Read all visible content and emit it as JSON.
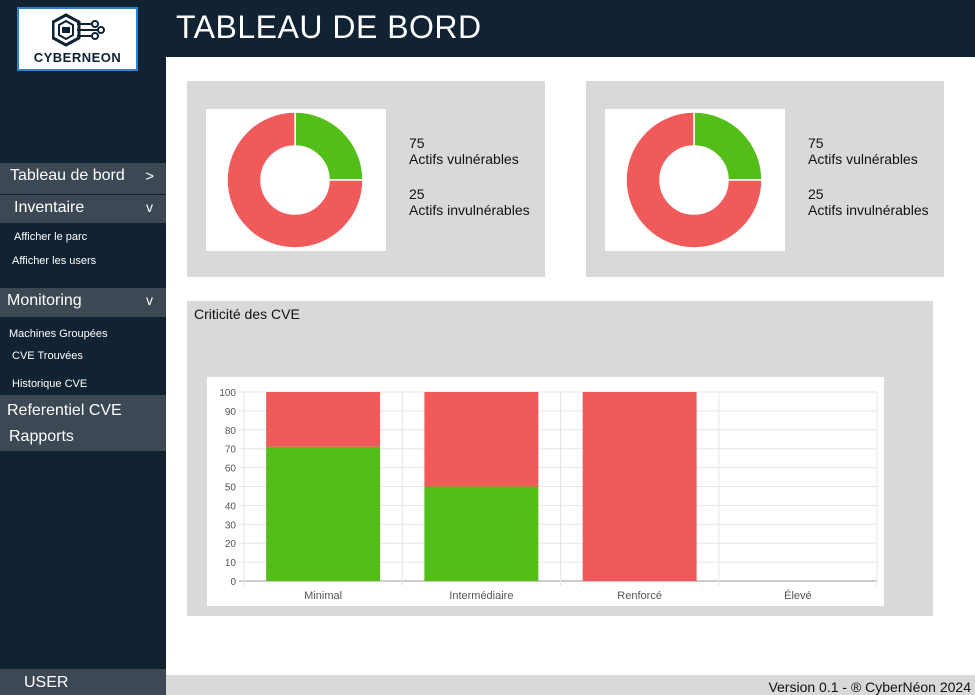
{
  "app": {
    "brand": "CYBERNEON"
  },
  "header": {
    "title": "TABLEAU DE BORD"
  },
  "sidebar": {
    "dashboard": {
      "label": "Tableau de bord",
      "chevron": ">"
    },
    "inventaire": {
      "label": "Inventaire",
      "chevron": "v",
      "items": [
        "Afficher le parc",
        "Afficher les users"
      ]
    },
    "monitoring": {
      "label": "Monitoring",
      "chevron": "v",
      "items": [
        "Machines Groupées",
        "CVE Trouvées",
        "Historique CVE"
      ]
    },
    "referentiel": {
      "label": "Referentiel CVE"
    },
    "rapports": {
      "label": "Rapports"
    },
    "user": {
      "label": "USER"
    }
  },
  "cards": [
    {
      "vulnerable_count": "75",
      "vulnerable_label": "Actifs vulnérables",
      "invulnerable_count": "25",
      "invulnerable_label": "Actifs invulnérables",
      "donut": {
        "vulnerable": 75,
        "invulnerable": 25
      }
    },
    {
      "vulnerable_count": "75",
      "vulnerable_label": "Actifs vulnérables",
      "invulnerable_count": "25",
      "invulnerable_label": "Actifs invulnérables",
      "donut": {
        "vulnerable": 75,
        "invulnerable": 25
      }
    }
  ],
  "chart_data": {
    "type": "bar",
    "stacked": true,
    "title": "Criticité des CVE",
    "categories": [
      "Minimal",
      "Intermédiaire",
      "Renforcé",
      "Élevé"
    ],
    "series": [
      {
        "color": "#52be17",
        "values": [
          71,
          50,
          0,
          0
        ]
      },
      {
        "color": "#f05a5a",
        "values": [
          29,
          50,
          100,
          0
        ]
      }
    ],
    "ylim": [
      0,
      100
    ],
    "yticks": [
      0,
      10,
      20,
      30,
      40,
      50,
      60,
      70,
      80,
      90,
      100
    ],
    "grid": true
  },
  "colors": {
    "vulnerable": "#f05a5a",
    "invulnerable": "#52be17",
    "sidebar": "#112233",
    "nav_highlight": "#3c4853"
  },
  "footer": {
    "text": "Version 0.1 - ® CyberNéon 2024"
  }
}
